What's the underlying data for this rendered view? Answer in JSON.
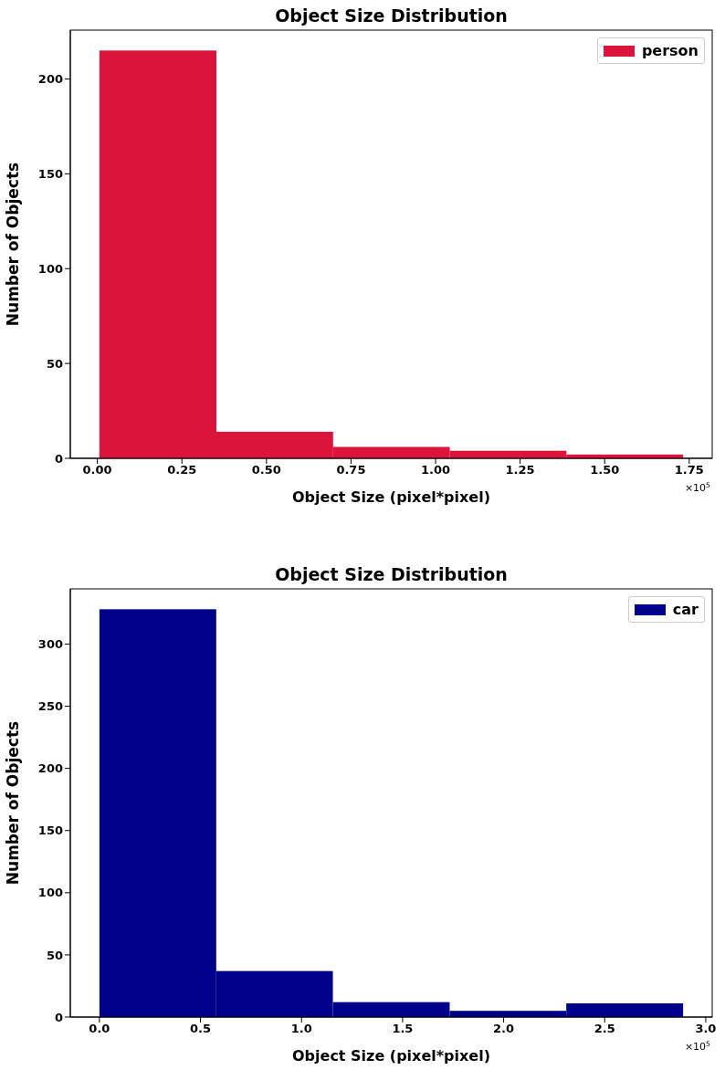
{
  "chart_data": [
    {
      "type": "histogram",
      "title": "Object Size Distribution",
      "xlabel": "Object Size (pixel*pixel)",
      "ylabel": "Number of Objects",
      "bins": [
        0.006,
        0.352,
        0.697,
        1.042,
        1.387,
        1.732
      ],
      "series": [
        {
          "name": "person",
          "color": "#dc143c",
          "values": [
            215,
            14,
            6,
            4,
            2
          ]
        }
      ],
      "xlim": [
        -0.08,
        1.818
      ],
      "xticks": [
        {
          "value": 0,
          "label": "0.00"
        },
        0.25,
        {
          "value": 0.5,
          "label": "0.50"
        },
        0.75,
        {
          "value": 1,
          "label": "1.00"
        },
        1.25,
        {
          "value": 1.5,
          "label": "1.50"
        },
        1.75
      ],
      "ylim": [
        0,
        225.75
      ],
      "yticks": [
        0,
        50,
        100,
        150,
        200
      ],
      "legend": "top right",
      "grid": false,
      "annotations": [
        "×10$^{5}$"
      ]
    },
    {
      "type": "histogram",
      "title": "Object Size Distribution",
      "xlabel": "Object Size (pixel*pixel)",
      "ylabel": "Number of Objects",
      "bins": [
        0,
        0.578,
        1.155,
        1.733,
        2.31,
        2.888
      ],
      "series": [
        {
          "name": "car",
          "color": "#00008b",
          "values": [
            328,
            37,
            12,
            5,
            11
          ]
        }
      ],
      "xlim": [
        -0.144,
        3.032
      ],
      "xticks": [
        {
          "value": 0,
          "label": "0.0"
        },
        {
          "value": 0.5,
          "label": "0.5"
        },
        {
          "value": 1,
          "label": "1.0"
        },
        {
          "value": 1.5,
          "label": "1.5"
        },
        {
          "value": 2,
          "label": "2.0"
        },
        {
          "value": 2.5,
          "label": "2.5"
        },
        {
          "value": 3,
          "label": "3.0"
        }
      ],
      "ylim": [
        0,
        344.4
      ],
      "yticks": [
        0,
        50,
        100,
        150,
        200,
        250,
        300
      ],
      "legend": "top right",
      "grid": false,
      "annotations": [
        "×10$^{5}$"
      ]
    }
  ]
}
